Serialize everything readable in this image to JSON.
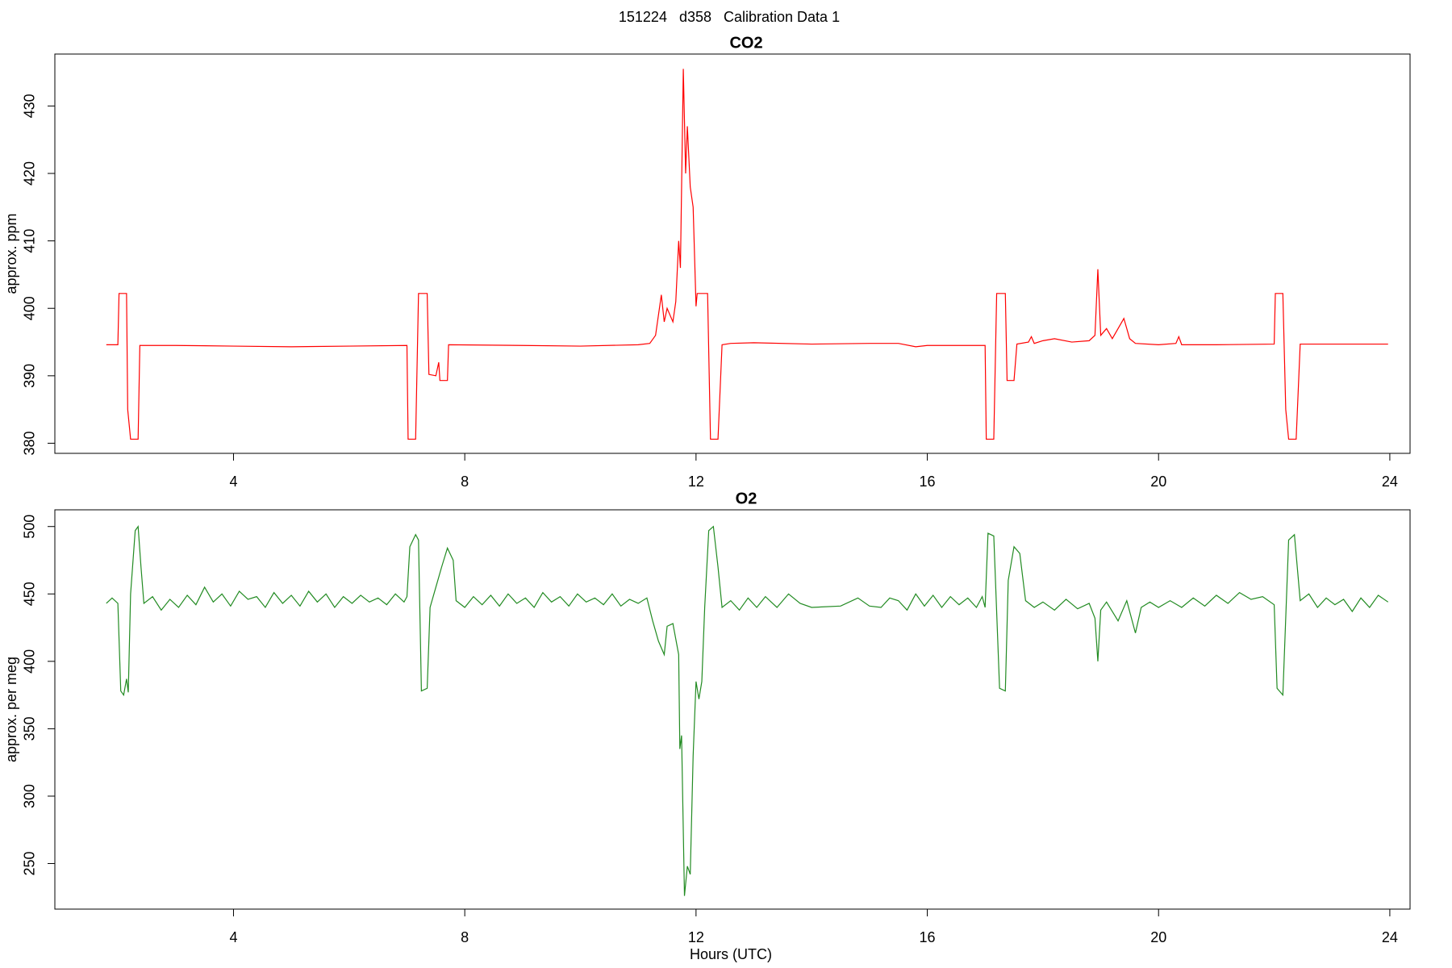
{
  "title": "151224   d358   Calibration Data 1",
  "chart_data": [
    {
      "type": "line",
      "title": "CO2",
      "ylabel": "approx. ppm",
      "color": "#ff0000",
      "xlim": [
        0.91,
        24.35
      ],
      "ylim": [
        378.5,
        437.7
      ],
      "xticks": [
        4,
        8,
        12,
        16,
        20,
        24
      ],
      "yticks": [
        380,
        390,
        400,
        410,
        420,
        430
      ],
      "x": [
        1.8,
        2.0,
        2.02,
        2.15,
        2.17,
        2.22,
        2.35,
        2.38,
        3,
        4,
        5,
        6,
        7.0,
        7.02,
        7.15,
        7.2,
        7.35,
        7.38,
        7.5,
        7.55,
        7.57,
        7.7,
        7.72,
        9,
        10,
        11,
        11.2,
        11.3,
        11.4,
        11.45,
        11.5,
        11.6,
        11.65,
        11.7,
        11.73,
        11.78,
        11.82,
        11.85,
        11.9,
        11.95,
        12.0,
        12.02,
        12.2,
        12.25,
        12.38,
        12.45,
        12.6,
        13,
        14,
        15,
        15.5,
        15.8,
        16,
        17,
        17.02,
        17.15,
        17.2,
        17.35,
        17.38,
        17.5,
        17.55,
        17.75,
        17.8,
        17.85,
        18,
        18.2,
        18.5,
        18.8,
        18.9,
        18.95,
        19.0,
        19.1,
        19.2,
        19.3,
        19.4,
        19.5,
        19.6,
        20,
        20.3,
        20.35,
        20.4,
        21,
        22,
        22.02,
        22.15,
        22.2,
        22.25,
        22.38,
        22.45,
        23,
        23.97
      ],
      "values": [
        394.6,
        394.6,
        402.2,
        402.2,
        385,
        380.6,
        380.6,
        394.5,
        394.5,
        394.4,
        394.3,
        394.4,
        394.5,
        380.6,
        380.6,
        402.2,
        402.2,
        390.2,
        390,
        392,
        389.3,
        389.3,
        394.6,
        394.5,
        394.4,
        394.6,
        394.8,
        396,
        402,
        398,
        400,
        398,
        401,
        410,
        406,
        435.5,
        420,
        427,
        418,
        415,
        400.3,
        402.2,
        402.2,
        380.6,
        380.6,
        394.6,
        394.8,
        394.9,
        394.7,
        394.8,
        394.8,
        394.3,
        394.5,
        394.5,
        380.6,
        380.6,
        402.2,
        402.2,
        389.3,
        389.3,
        394.7,
        395,
        395.8,
        394.8,
        395.2,
        395.5,
        395,
        395.2,
        396,
        405.8,
        396,
        397,
        395.5,
        397,
        398.5,
        395.5,
        394.8,
        394.6,
        394.8,
        395.8,
        394.6,
        394.6,
        394.7,
        402.2,
        402.2,
        385,
        380.6,
        380.6,
        394.7,
        394.7,
        394.7
      ]
    },
    {
      "type": "line",
      "title": "O2",
      "ylabel": "approx. per meg",
      "xlabel": "Hours (UTC)",
      "color": "#228b22",
      "xlim": [
        0.91,
        24.35
      ],
      "ylim": [
        216.2,
        512.4
      ],
      "xticks": [
        4,
        8,
        12,
        16,
        20,
        24
      ],
      "yticks": [
        250,
        300,
        350,
        400,
        450,
        500
      ],
      "x": [
        1.8,
        1.9,
        2.0,
        2.05,
        2.1,
        2.15,
        2.18,
        2.22,
        2.3,
        2.35,
        2.4,
        2.45,
        2.6,
        2.75,
        2.9,
        3.05,
        3.2,
        3.35,
        3.5,
        3.65,
        3.8,
        3.95,
        4.1,
        4.25,
        4.4,
        4.55,
        4.7,
        4.85,
        5.0,
        5.15,
        5.3,
        5.45,
        5.6,
        5.75,
        5.9,
        6.05,
        6.2,
        6.35,
        6.5,
        6.65,
        6.8,
        6.95,
        7.0,
        7.05,
        7.15,
        7.2,
        7.25,
        7.35,
        7.4,
        7.5,
        7.6,
        7.7,
        7.8,
        7.85,
        8.0,
        8.15,
        8.3,
        8.45,
        8.6,
        8.75,
        8.9,
        9.05,
        9.2,
        9.35,
        9.5,
        9.65,
        9.8,
        9.95,
        10.1,
        10.25,
        10.4,
        10.55,
        10.7,
        10.85,
        11.0,
        11.15,
        11.25,
        11.35,
        11.45,
        11.5,
        11.6,
        11.7,
        11.72,
        11.75,
        11.8,
        11.85,
        11.9,
        11.95,
        12.0,
        12.05,
        12.1,
        12.15,
        12.22,
        12.3,
        12.38,
        12.45,
        12.6,
        12.75,
        12.9,
        13.05,
        13.2,
        13.4,
        13.6,
        13.8,
        14,
        14.5,
        14.8,
        15.0,
        15.2,
        15.35,
        15.5,
        15.65,
        15.8,
        15.95,
        16.1,
        16.25,
        16.4,
        16.55,
        16.7,
        16.85,
        16.95,
        17.0,
        17.05,
        17.15,
        17.25,
        17.35,
        17.4,
        17.5,
        17.6,
        17.7,
        17.85,
        18.0,
        18.2,
        18.4,
        18.6,
        18.8,
        18.9,
        18.95,
        19.0,
        19.1,
        19.3,
        19.45,
        19.6,
        19.7,
        19.85,
        20.0,
        20.2,
        20.4,
        20.6,
        20.8,
        21.0,
        21.2,
        21.4,
        21.6,
        21.8,
        22.0,
        22.05,
        22.15,
        22.25,
        22.35,
        22.45,
        22.6,
        22.75,
        22.9,
        23.05,
        23.2,
        23.35,
        23.5,
        23.65,
        23.8,
        23.97
      ],
      "values": [
        443,
        447,
        443,
        378,
        375,
        387,
        377,
        450,
        497,
        500,
        470,
        443,
        448,
        438,
        446,
        440,
        449,
        442,
        455,
        444,
        450,
        441,
        452,
        446,
        448,
        440,
        451,
        443,
        449,
        441,
        452,
        444,
        450,
        440,
        448,
        443,
        449,
        444,
        447,
        442,
        450,
        444,
        448,
        485,
        494,
        490,
        378,
        380,
        440,
        455,
        470,
        484,
        475,
        445,
        440,
        448,
        442,
        449,
        441,
        450,
        443,
        447,
        440,
        451,
        444,
        448,
        441,
        450,
        444,
        447,
        442,
        450,
        441,
        446,
        443,
        447,
        430,
        415,
        405,
        426,
        428,
        405,
        335,
        345,
        226,
        248,
        242,
        330,
        385,
        372,
        385,
        440,
        497,
        500,
        470,
        440,
        445,
        438,
        447,
        440,
        448,
        440,
        450,
        443,
        440,
        441,
        447,
        441,
        440,
        447,
        445,
        438,
        450,
        441,
        449,
        440,
        448,
        442,
        447,
        440,
        448,
        440,
        495,
        493,
        380,
        378,
        460,
        485,
        480,
        445,
        440,
        444,
        438,
        446,
        439,
        443,
        432,
        400,
        438,
        444,
        430,
        445,
        421,
        440,
        444,
        440,
        445,
        440,
        447,
        441,
        449,
        443,
        451,
        446,
        448,
        442,
        380,
        375,
        490,
        494,
        445,
        450,
        440,
        447,
        442,
        446,
        437,
        447,
        440,
        449,
        444
      ]
    }
  ]
}
